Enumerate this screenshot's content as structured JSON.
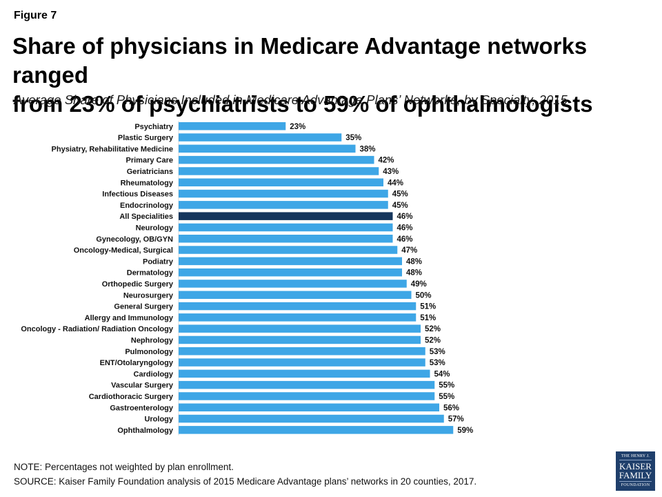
{
  "figure_label": "Figure 7",
  "title_line1": "Share of physicians in Medicare Advantage networks ranged",
  "title_line2": "from 23% of psychiatrists to 59% of ophthalmologists",
  "subtitle": "Average Share of Physicians Included in Medicare Advantage Plans’ Networks, by Specialty, 2015",
  "notes": {
    "note": "NOTE: Percentages not weighted by plan enrollment.",
    "source": "SOURCE: Kaiser Family Foundation  analysis of 2015 Medicare Advantage plans’ networks in 20 counties, 2017."
  },
  "logo": {
    "line1": "THE HENRY J.",
    "line2": "KAISER",
    "line3": "FAMILY",
    "line4": "FOUNDATION"
  },
  "colors": {
    "bar": "#3ea6e6",
    "highlight_bar": "#16365d",
    "logo_bg": "#1f3f6b"
  },
  "chart_data": {
    "type": "bar",
    "orientation": "horizontal",
    "value_suffix": "%",
    "xlim": [
      0,
      70
    ],
    "grid": false,
    "highlight_category": "All Specialities",
    "categories": [
      "Psychiatry",
      "Plastic Surgery",
      "Physiatry, Rehabilitative Medicine",
      "Primary Care",
      "Geriatricians",
      "Rheumatology",
      "Infectious Diseases",
      "Endocrinology",
      "All Specialities",
      "Neurology",
      "Gynecology, OB/GYN",
      "Oncology-Medical, Surgical",
      "Podiatry",
      "Dermatology",
      "Orthopedic Surgery",
      "Neurosurgery",
      "General Surgery",
      "Allergy and Immunology",
      "Oncology - Radiation/ Radiation Oncology",
      "Nephrology",
      "Pulmonology",
      "ENT/Otolaryngology",
      "Cardiology",
      "Vascular Surgery",
      "Cardiothoracic Surgery",
      "Gastroenterology",
      "Urology",
      "Ophthalmology"
    ],
    "values": [
      23,
      35,
      38,
      42,
      43,
      44,
      45,
      45,
      46,
      46,
      46,
      47,
      48,
      48,
      49,
      50,
      51,
      51,
      52,
      52,
      53,
      53,
      54,
      55,
      55,
      56,
      57,
      59
    ]
  }
}
